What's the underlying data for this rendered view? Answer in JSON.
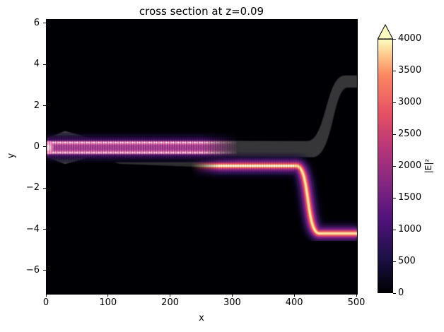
{
  "figure": {
    "title": "cross section at z=0.09",
    "background": "#ffffff"
  },
  "axes": {
    "xlabel": "x",
    "ylabel": "y"
  },
  "chart_data": {
    "type": "heatmap",
    "title": "cross section at z=0.09",
    "xlabel": "x",
    "ylabel": "y",
    "xlim": [
      0,
      500
    ],
    "ylim": [
      -7.1,
      6.2
    ],
    "grid": false,
    "x_ticks": [
      {
        "v": 0,
        "label": "0"
      },
      {
        "v": 100,
        "label": "100"
      },
      {
        "v": 200,
        "label": "200"
      },
      {
        "v": 300,
        "label": "300"
      },
      {
        "v": 400,
        "label": "400"
      },
      {
        "v": 500,
        "label": "500"
      }
    ],
    "y_ticks": [
      {
        "v": 6,
        "label": "6"
      },
      {
        "v": 4,
        "label": "4"
      },
      {
        "v": 2,
        "label": "2"
      },
      {
        "v": 0,
        "label": "0"
      },
      {
        "v": -2,
        "label": "−2"
      },
      {
        "v": -4,
        "label": "−4"
      },
      {
        "v": -6,
        "label": "−6"
      }
    ],
    "colormap": "magma",
    "colormap_stops": [
      [
        0.0,
        "#000004"
      ],
      [
        0.14,
        "#1d1147"
      ],
      [
        0.29,
        "#51127c"
      ],
      [
        0.43,
        "#822681"
      ],
      [
        0.57,
        "#b63679"
      ],
      [
        0.71,
        "#e65164"
      ],
      [
        0.86,
        "#fb8861"
      ],
      [
        0.94,
        "#fec98d"
      ],
      [
        1.0,
        "#fcfdbf"
      ]
    ],
    "background_value_color": "#000004",
    "colorbar": {
      "label": "|E|²",
      "vmin": 0,
      "vmax": 4000,
      "extend": "max",
      "extend_color": "#fcfdbf",
      "ticks": [
        {
          "v": 0,
          "label": "0"
        },
        {
          "v": 500,
          "label": "500"
        },
        {
          "v": 1000,
          "label": "1000"
        },
        {
          "v": 1500,
          "label": "1500"
        },
        {
          "v": 2000,
          "label": "2000"
        },
        {
          "v": 2500,
          "label": "2500"
        },
        {
          "v": 3000,
          "label": "3000"
        },
        {
          "v": 3500,
          "label": "3500"
        },
        {
          "v": 4000,
          "label": "4000"
        }
      ]
    },
    "features": [
      {
        "name": "input-taper-outline",
        "kind": "waveguide-geometry-overlay",
        "x_range": [
          0,
          75
        ],
        "y_center": 0,
        "max_half_width": 0.8,
        "appearance": "translucent gray diamond-shaped taper at input"
      },
      {
        "name": "upper-waveguide-outline",
        "kind": "waveguide-geometry-overlay",
        "x_range": [
          75,
          500
        ],
        "y_start": 0,
        "s_bend": {
          "x_range": [
            420,
            487
          ],
          "y_end": 3.2
        },
        "appearance": "translucent gray straight guide that S-bends up to y≈3.2, carries no power after x≈300"
      },
      {
        "name": "lower-waveguide-taper-outline",
        "kind": "waveguide-geometry-overlay",
        "x_range": [
          106,
          300
        ],
        "y_center": -0.8,
        "appearance": "thin translucent gray wedge widening to the right"
      },
      {
        "name": "upper-waveguide-field",
        "kind": "field-intensity",
        "x_range": [
          0,
          305
        ],
        "y_center": 0,
        "peak_value": 2500,
        "appearance": "pink-magenta band, two brighter streaks near y≈±0.25, vertical interference striations, fades out between x≈250 and x≈305 as power couples into lower guide"
      },
      {
        "name": "lower-waveguide-field",
        "kind": "field-intensity",
        "x_range": [
          255,
          500
        ],
        "y_center_straight": -0.9,
        "s_bend": {
          "x_range": [
            405,
            450
          ],
          "y_end": -4.15
        },
        "peak_value": 4000,
        "appearance": "bright yellow-white core with orange, magenta and purple halo, continues to right edge at y≈−4.15"
      }
    ]
  }
}
